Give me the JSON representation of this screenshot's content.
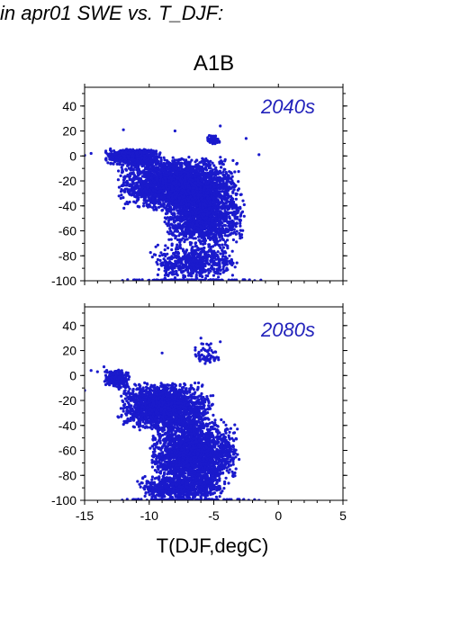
{
  "header": {
    "title": "in apr01 SWE vs. T_DJF:"
  },
  "scenario": "A1B",
  "colors": {
    "points": "#1a1acc",
    "label": "#2222bb",
    "axis": "#000000"
  },
  "chart_data": {
    "type": "scatter",
    "xlabel": "T(DJF,degC)",
    "xlim": [
      -15,
      5
    ],
    "ylim": [
      -100,
      55
    ],
    "x_ticks": [
      -15,
      -10,
      -5,
      0,
      5
    ],
    "y_ticks": [
      -100,
      -80,
      -60,
      -40,
      -20,
      0,
      20,
      40
    ],
    "grid": false,
    "panels": [
      {
        "label": "2040s",
        "clusters": [
          {
            "x": [
              -13.5,
              -9
            ],
            "y": [
              -8,
              6
            ],
            "n": 700
          },
          {
            "x": [
              -12.5,
              -3
            ],
            "y": [
              -45,
              0
            ],
            "n": 2600
          },
          {
            "x": [
              -9,
              -2.5
            ],
            "y": [
              -75,
              -20
            ],
            "n": 1500
          },
          {
            "x": [
              -10,
              -3
            ],
            "y": [
              -99.5,
              -70
            ],
            "n": 600
          },
          {
            "x": [
              -5.5,
              -4.5
            ],
            "y": [
              8,
              17
            ],
            "n": 60
          },
          {
            "x": [
              -12.5,
              -1
            ],
            "y": [
              -100,
              -99
            ],
            "n": 120
          }
        ],
        "points": [
          [
            -15,
            0.5
          ],
          [
            -12,
            21
          ],
          [
            -8,
            20
          ],
          [
            -4.5,
            24
          ],
          [
            -2.5,
            14
          ],
          [
            -1.5,
            1
          ],
          [
            -14.5,
            2
          ],
          [
            -4,
            -90
          ]
        ]
      },
      {
        "label": "2080s",
        "clusters": [
          {
            "x": [
              -13.5,
              -11.5
            ],
            "y": [
              -10,
              5
            ],
            "n": 250
          },
          {
            "x": [
              -12.5,
              -5
            ],
            "y": [
              -45,
              -5
            ],
            "n": 1800
          },
          {
            "x": [
              -10,
              -3
            ],
            "y": [
              -90,
              -35
            ],
            "n": 2200
          },
          {
            "x": [
              -11,
              -4
            ],
            "y": [
              -99.5,
              -80
            ],
            "n": 800
          },
          {
            "x": [
              -6.5,
              -4.5
            ],
            "y": [
              5,
              28
            ],
            "n": 60
          },
          {
            "x": [
              -12.5,
              -1.5
            ],
            "y": [
              -100,
              -99
            ],
            "n": 120
          }
        ],
        "points": [
          [
            -15,
            -12
          ],
          [
            -14.5,
            4
          ],
          [
            -14,
            3
          ],
          [
            -13.5,
            7
          ],
          [
            -9,
            18
          ],
          [
            -6,
            30
          ],
          [
            -4.5,
            27
          ],
          [
            -1.5,
            -100
          ]
        ]
      }
    ]
  }
}
